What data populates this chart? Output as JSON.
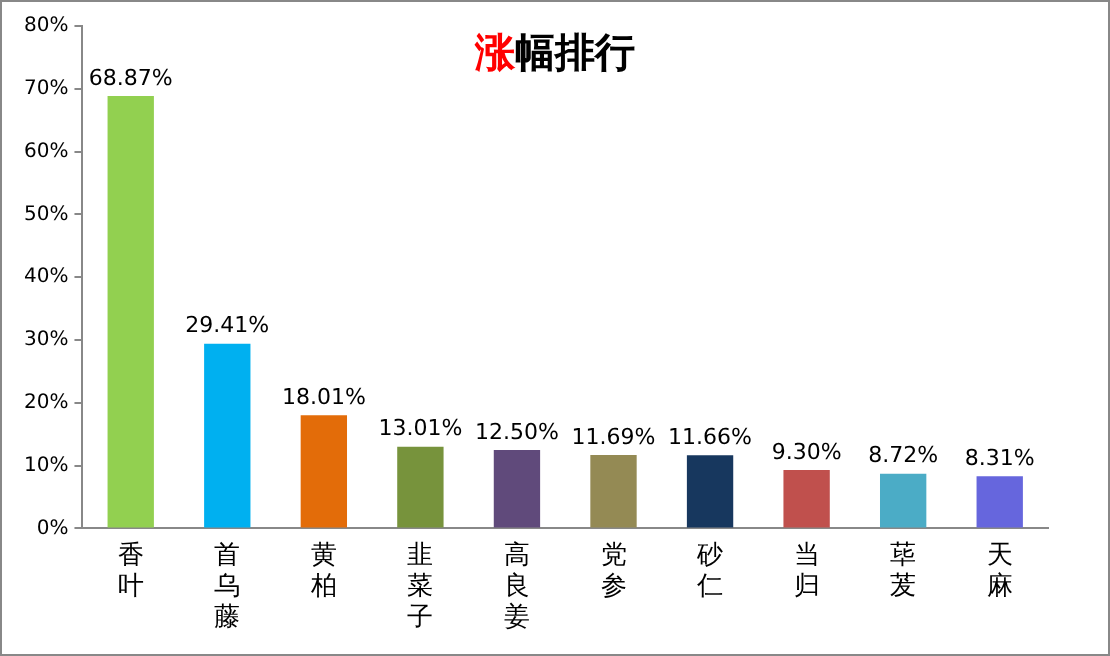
{
  "chart_data": {
    "type": "bar",
    "title": "涨幅排行",
    "categories": [
      "香叶",
      "首乌藤",
      "黄柏",
      "韭菜子",
      "高良姜",
      "党参",
      "砂仁",
      "当归",
      "荜茇",
      "天麻"
    ],
    "values": [
      68.87,
      29.41,
      18.01,
      13.01,
      12.5,
      11.69,
      11.66,
      9.3,
      8.72,
      8.31
    ],
    "value_labels": [
      "68.87%",
      "29.41%",
      "18.01%",
      "13.01%",
      "12.50%",
      "11.69%",
      "11.66%",
      "9.30%",
      "8.72%",
      "8.31%"
    ],
    "colors": [
      "#92d050",
      "#00b0f0",
      "#e36c09",
      "#77933c",
      "#604a7b",
      "#948a54",
      "#17375e",
      "#c0504d",
      "#4bacc6",
      "#6666dd"
    ],
    "ylim": [
      0,
      80
    ],
    "yticks": [
      {
        "value": 0,
        "label": "0%"
      },
      {
        "value": 10,
        "label": "10%"
      },
      {
        "value": 20,
        "label": "20%"
      },
      {
        "value": 30,
        "label": "30%"
      },
      {
        "value": 40,
        "label": "40%"
      },
      {
        "value": 50,
        "label": "50%"
      },
      {
        "value": 60,
        "label": "60%"
      },
      {
        "value": 70,
        "label": "70%"
      },
      {
        "value": 80,
        "label": "80%"
      }
    ],
    "grid": false,
    "legend": false
  }
}
